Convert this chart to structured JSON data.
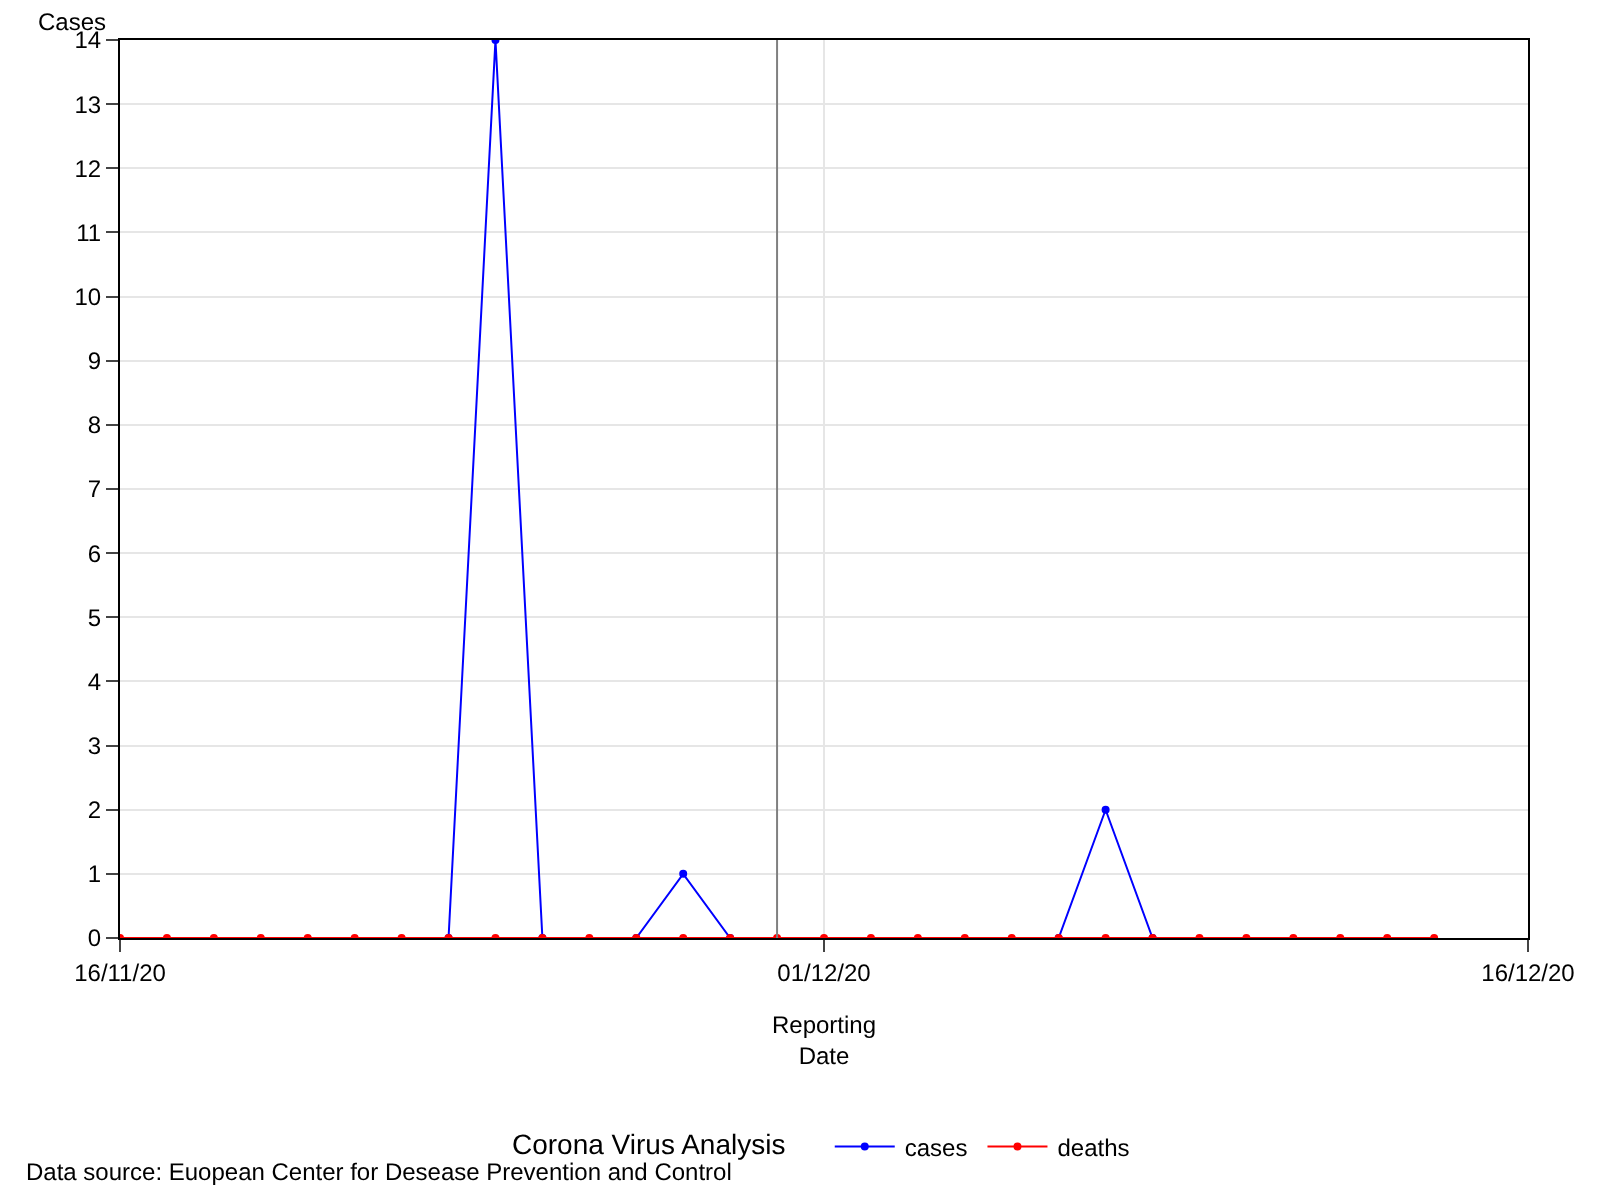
{
  "chart_data": {
    "type": "line",
    "ylabel": "Cases",
    "xlabel": "Reporting\nDate",
    "legend_title": "Corona Virus Analysis",
    "x": [
      "2020-11-16",
      "2020-11-17",
      "2020-11-18",
      "2020-11-19",
      "2020-11-20",
      "2020-11-21",
      "2020-11-22",
      "2020-11-23",
      "2020-11-24",
      "2020-11-25",
      "2020-11-26",
      "2020-11-27",
      "2020-11-28",
      "2020-11-29",
      "2020-11-30",
      "2020-12-01",
      "2020-12-02",
      "2020-12-03",
      "2020-12-04",
      "2020-12-05",
      "2020-12-06",
      "2020-12-07",
      "2020-12-08",
      "2020-12-09",
      "2020-12-10",
      "2020-12-11",
      "2020-12-12",
      "2020-12-13",
      "2020-12-14"
    ],
    "series": [
      {
        "name": "cases",
        "color": "#0000ff",
        "values": [
          null,
          null,
          null,
          null,
          null,
          null,
          null,
          0,
          14,
          0,
          null,
          0,
          1,
          0,
          null,
          null,
          null,
          null,
          null,
          null,
          0,
          2,
          0,
          null,
          null,
          null,
          null,
          null,
          null
        ]
      },
      {
        "name": "deaths",
        "color": "#ff0000",
        "values": [
          0,
          0,
          0,
          0,
          0,
          0,
          0,
          0,
          0,
          0,
          0,
          0,
          0,
          0,
          0,
          0,
          0,
          0,
          0,
          0,
          0,
          0,
          0,
          0,
          0,
          0,
          0,
          0,
          0
        ]
      }
    ],
    "xlim": [
      "2020-11-16",
      "2020-12-16"
    ],
    "xticks": [
      {
        "value": "2020-11-16",
        "label": "16/11/20"
      },
      {
        "value": "2020-12-01",
        "label": "01/12/20"
      },
      {
        "value": "2020-12-16",
        "label": "16/12/20"
      }
    ],
    "ylim": [
      0,
      14
    ],
    "yticks": [
      0,
      1,
      2,
      3,
      4,
      5,
      6,
      7,
      8,
      9,
      10,
      11,
      12,
      13,
      14
    ],
    "ref_lines": [
      {
        "axis": "x",
        "value": "2020-11-30",
        "color": "#808080"
      }
    ],
    "grid": true,
    "legend": "bottom",
    "marker": "circle",
    "line_style": "solid",
    "annotations": [
      "Data source: Euopean Center for Desease Prevention and Control"
    ]
  }
}
